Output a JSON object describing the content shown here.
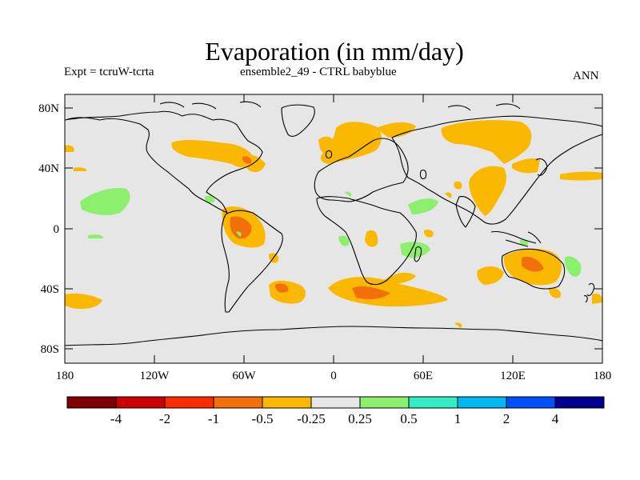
{
  "title": "Evaporation (in mm/day)",
  "left_subtitle": "Expt = tcruW-tcrta",
  "center_subtitle": "ensemble2_49 - CTRL babyblue",
  "right_subtitle": "ANN",
  "colors": {
    "ocean_land_background": "#e6e6e6",
    "coastline": "#000000"
  },
  "axes": {
    "x_ticks": [
      "180",
      "120W",
      "60W",
      "0",
      "60E",
      "120E",
      "180"
    ],
    "y_ticks": [
      "80N",
      "40N",
      "0",
      "40S",
      "80S"
    ]
  },
  "colorbar": {
    "colors": [
      "#7f0000",
      "#cc0000",
      "#ff2a00",
      "#f26f0c",
      "#fbb800",
      "#e6e6e6",
      "#8cf06e",
      "#33eec4",
      "#00b8f0",
      "#0050ff",
      "#000090"
    ],
    "labels": [
      "-4",
      "-2",
      "-1",
      "-0.5",
      "-0.25",
      "0.25",
      "0.5",
      "1",
      "2",
      "4"
    ]
  }
}
